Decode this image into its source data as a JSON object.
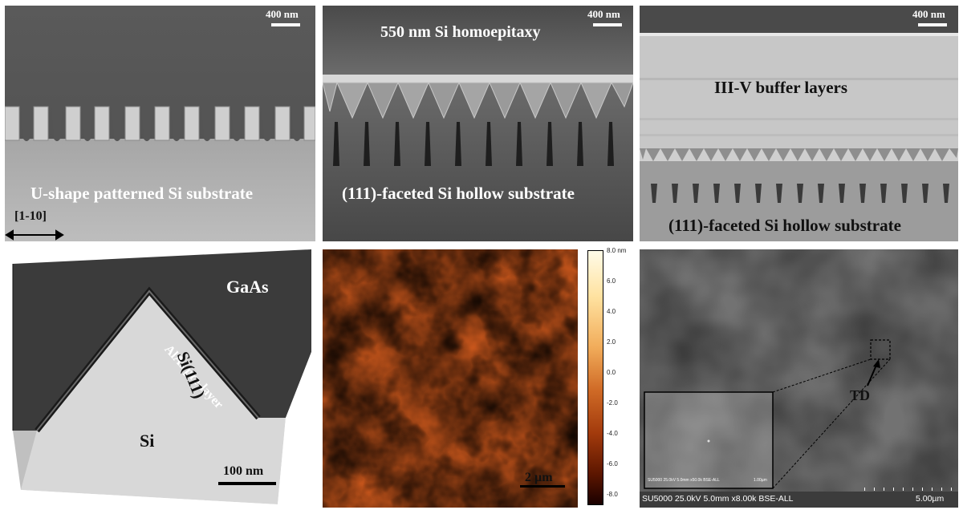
{
  "panels": {
    "a": {
      "scale": "400 nm",
      "caption": "U-shape patterned Si substrate",
      "direction": "[1-10]"
    },
    "b": {
      "scale": "400 nm",
      "top_label": "550 nm Si homoepitaxy",
      "caption": "(111)-faceted Si hollow substrate"
    },
    "c": {
      "scale": "400 nm",
      "label": "III-V buffer layers",
      "caption": "(111)-faceted Si hollow substrate"
    },
    "d": {
      "gaas": "GaAs",
      "alas": "AlAs pre-layer",
      "si111": "Si(111)",
      "si": "Si",
      "scale": "100 nm"
    },
    "e": {
      "scale": "2 µm",
      "colorbar_ticks": [
        "8.0 nm",
        "6.0",
        "4.0",
        "2.0",
        "0.0",
        "-2.0",
        "-4.0",
        "-6.0",
        "-8.0"
      ]
    },
    "f": {
      "td": "TD",
      "inset_info": "SU5000 25.0kV 5.0mm x50.0k BSE-ALL",
      "inset_scale": "1.00µm",
      "info": "SU5000 25.0kV 5.0mm x8.00k BSE-ALL",
      "scale": "5.00µm"
    }
  },
  "colors": {
    "afm_dark": "#3a0c00",
    "afm_mid": "#c9571c",
    "afm_light": "#fff3d0",
    "sem_dark": "#3a3a3a",
    "sem_light": "#c8c8c8"
  }
}
